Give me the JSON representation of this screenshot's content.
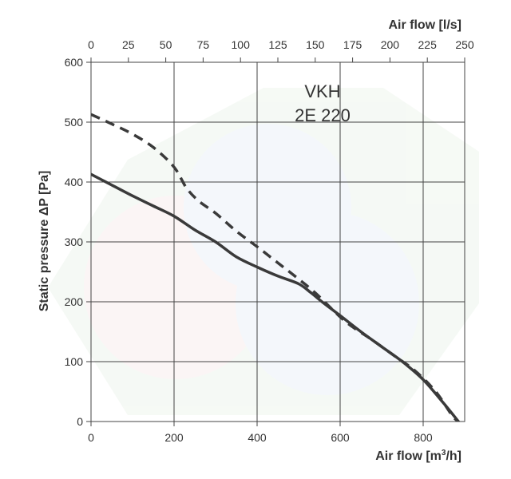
{
  "chart_data": {
    "type": "line",
    "title": "",
    "annotation": [
      "VKH",
      "2E 220"
    ],
    "xlabel": "Air flow [m³/h]",
    "xlabel_parts": {
      "pre": "Air flow [m",
      "sup": "3",
      "post": "/h]"
    },
    "x2label": "Air flow [l/s]",
    "ylabel": "Static pressure ΔP [Pa]",
    "xlim": [
      0,
      900
    ],
    "x2lim": [
      0,
      250
    ],
    "ylim": [
      0,
      600
    ],
    "xticks": [
      "0",
      "200",
      "400",
      "600",
      "800"
    ],
    "x2ticks": [
      "0",
      "25",
      "50",
      "75",
      "100",
      "125",
      "150",
      "175",
      "200",
      "225",
      "250"
    ],
    "yticks": [
      "0",
      "100",
      "200",
      "300",
      "400",
      "500",
      "600"
    ],
    "grid": true,
    "colors": {
      "series": "#3a3a3a",
      "grid": "#444444",
      "text": "#333333"
    },
    "series": [
      {
        "style": "solid",
        "points": [
          [
            0,
            413
          ],
          [
            50,
            395
          ],
          [
            100,
            377
          ],
          [
            150,
            360
          ],
          [
            200,
            343
          ],
          [
            250,
            320
          ],
          [
            300,
            300
          ],
          [
            350,
            275
          ],
          [
            400,
            258
          ],
          [
            450,
            243
          ],
          [
            500,
            230
          ],
          [
            530,
            215
          ],
          [
            560,
            198
          ],
          [
            600,
            177
          ],
          [
            650,
            150
          ],
          [
            700,
            125
          ],
          [
            750,
            100
          ],
          [
            800,
            70
          ],
          [
            850,
            30
          ],
          [
            885,
            0
          ]
        ]
      },
      {
        "style": "dashed",
        "points": [
          [
            0,
            513
          ],
          [
            50,
            497
          ],
          [
            100,
            480
          ],
          [
            150,
            458
          ],
          [
            200,
            425
          ],
          [
            230,
            390
          ],
          [
            260,
            368
          ],
          [
            300,
            348
          ],
          [
            350,
            318
          ],
          [
            400,
            292
          ],
          [
            450,
            265
          ],
          [
            500,
            238
          ],
          [
            540,
            215
          ],
          [
            580,
            188
          ],
          [
            620,
            163
          ],
          [
            680,
            135
          ],
          [
            730,
            110
          ],
          [
            780,
            85
          ],
          [
            830,
            50
          ],
          [
            870,
            10
          ],
          [
            885,
            0
          ]
        ]
      }
    ]
  }
}
